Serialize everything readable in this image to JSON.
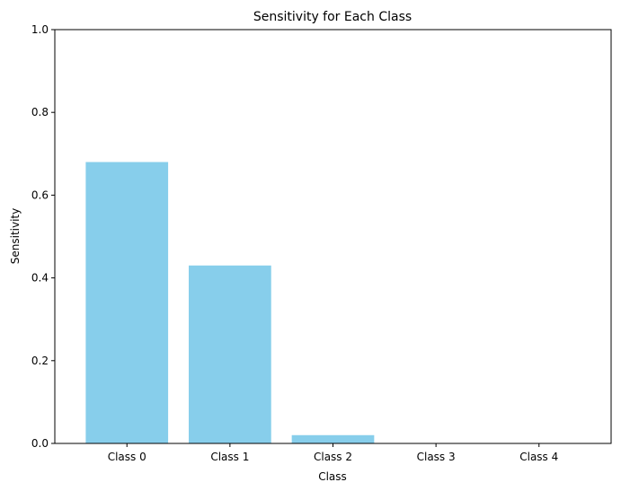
{
  "chart_data": {
    "type": "bar",
    "title": "Sensitivity for Each Class",
    "xlabel": "Class",
    "ylabel": "Sensitivity",
    "categories": [
      "Class 0",
      "Class 1",
      "Class 2",
      "Class 3",
      "Class 4"
    ],
    "values": [
      0.68,
      0.43,
      0.02,
      0.0,
      0.0
    ],
    "ylim": [
      0,
      1
    ],
    "yticks": [
      "0.0",
      "0.2",
      "0.4",
      "0.6",
      "0.8",
      "1.0"
    ],
    "bar_color": "#87ceeb",
    "grid": false,
    "legend": "none"
  }
}
